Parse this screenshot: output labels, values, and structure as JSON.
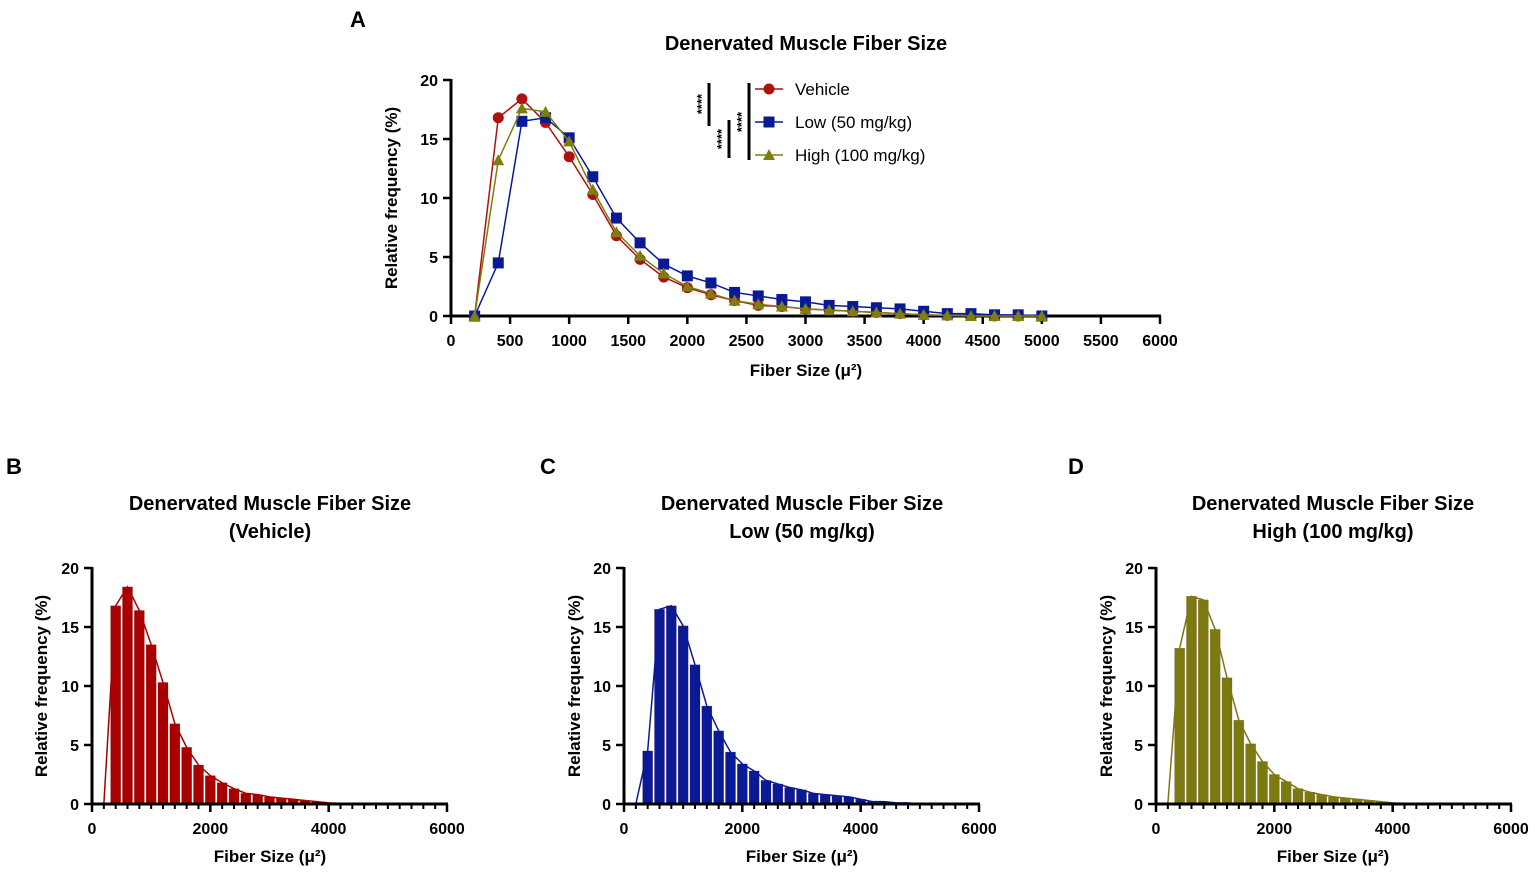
{
  "panel_letters": [
    "A",
    "B",
    "C",
    "D"
  ],
  "colors": {
    "vehicle": "#b01010",
    "low": "#0a1a96",
    "high": "#7d7d10"
  },
  "significance": [
    "****",
    "****",
    "****"
  ],
  "chart_data": [
    {
      "type": "line",
      "panel": "A",
      "title": "Denervated Muscle Fiber Size",
      "xlabel": "Fiber Size (μ²)",
      "ylabel": "Relative frequency (%)",
      "xlim": [
        0,
        6000
      ],
      "ylim": [
        0,
        20
      ],
      "xticks": [
        0,
        500,
        1000,
        1500,
        2000,
        2500,
        3000,
        3500,
        4000,
        4500,
        5000,
        5500,
        6000
      ],
      "yticks": [
        0,
        5,
        10,
        15,
        20
      ],
      "legend_position": "top-right",
      "x": [
        200,
        400,
        600,
        800,
        1000,
        1200,
        1400,
        1600,
        1800,
        2000,
        2200,
        2400,
        2600,
        2800,
        3000,
        3200,
        3400,
        3600,
        3800,
        4000,
        4200,
        4400,
        4600,
        4800,
        5000
      ],
      "series": [
        {
          "name": "Vehicle",
          "marker": "circle",
          "color": "#b01010",
          "values": [
            0,
            16.8,
            18.4,
            16.4,
            13.5,
            10.3,
            6.8,
            4.8,
            3.3,
            2.4,
            1.8,
            1.3,
            0.9,
            0.8,
            0.6,
            0.5,
            0.4,
            0.3,
            0.2,
            0.1,
            0.05,
            0.05,
            0,
            0,
            0
          ]
        },
        {
          "name": "Low (50 mg/kg)",
          "marker": "square",
          "color": "#0a1a96",
          "values": [
            0,
            4.5,
            16.5,
            16.8,
            15.1,
            11.8,
            8.3,
            6.2,
            4.4,
            3.4,
            2.8,
            2.0,
            1.7,
            1.4,
            1.2,
            0.9,
            0.8,
            0.7,
            0.6,
            0.4,
            0.2,
            0.2,
            0.1,
            0.1,
            0
          ]
        },
        {
          "name": "High (100 mg/kg)",
          "marker": "triangle",
          "color": "#7d7d10",
          "values": [
            0,
            13.2,
            17.6,
            17.3,
            14.8,
            10.7,
            7.1,
            5.1,
            3.6,
            2.5,
            1.9,
            1.3,
            1.0,
            0.8,
            0.6,
            0.5,
            0.4,
            0.3,
            0.2,
            0.1,
            0.05,
            0,
            0,
            0,
            0
          ]
        }
      ]
    },
    {
      "type": "bar",
      "panel": "B",
      "title": [
        "Denervated Muscle Fiber Size",
        "(Vehicle)"
      ],
      "xlabel": "Fiber Size (μ²)",
      "ylabel": "Relative frequency (%)",
      "xlim": [
        0,
        6000
      ],
      "ylim": [
        0,
        20
      ],
      "xticks": [
        0,
        2000,
        4000,
        6000
      ],
      "yticks": [
        0,
        5,
        10,
        15,
        20
      ],
      "color": "#a80000",
      "x": [
        200,
        400,
        600,
        800,
        1000,
        1200,
        1400,
        1600,
        1800,
        2000,
        2200,
        2400,
        2600,
        2800,
        3000,
        3200,
        3400,
        3600,
        3800,
        4000,
        4200,
        4400,
        4600,
        4800,
        5000
      ],
      "values": [
        0,
        16.8,
        18.4,
        16.4,
        13.5,
        10.3,
        6.8,
        4.8,
        3.3,
        2.4,
        1.8,
        1.3,
        0.9,
        0.8,
        0.6,
        0.5,
        0.4,
        0.3,
        0.2,
        0.1,
        0.05,
        0.05,
        0,
        0,
        0
      ]
    },
    {
      "type": "bar",
      "panel": "C",
      "title": [
        "Denervated Muscle Fiber Size",
        "Low (50 mg/kg)"
      ],
      "xlabel": "Fiber Size (μ²)",
      "ylabel": "Relative frequency (%)",
      "xlim": [
        0,
        6000
      ],
      "ylim": [
        0,
        20
      ],
      "xticks": [
        0,
        2000,
        4000,
        6000
      ],
      "yticks": [
        0,
        5,
        10,
        15,
        20
      ],
      "color": "#0a1a96",
      "x": [
        200,
        400,
        600,
        800,
        1000,
        1200,
        1400,
        1600,
        1800,
        2000,
        2200,
        2400,
        2600,
        2800,
        3000,
        3200,
        3400,
        3600,
        3800,
        4000,
        4200,
        4400,
        4600,
        4800,
        5000
      ],
      "values": [
        0,
        4.5,
        16.5,
        16.8,
        15.1,
        11.8,
        8.3,
        6.2,
        4.4,
        3.4,
        2.8,
        2.0,
        1.7,
        1.4,
        1.2,
        0.9,
        0.8,
        0.7,
        0.6,
        0.4,
        0.2,
        0.2,
        0.1,
        0.1,
        0
      ]
    },
    {
      "type": "bar",
      "panel": "D",
      "title": [
        "Denervated Muscle Fiber Size",
        "High (100 mg/kg)"
      ],
      "xlabel": "Fiber Size (μ²)",
      "ylabel": "Relative frequency (%)",
      "xlim": [
        0,
        6000
      ],
      "ylim": [
        0,
        20
      ],
      "xticks": [
        0,
        2000,
        4000,
        6000
      ],
      "yticks": [
        0,
        5,
        10,
        15,
        20
      ],
      "color": "#7a7a10",
      "x": [
        200,
        400,
        600,
        800,
        1000,
        1200,
        1400,
        1600,
        1800,
        2000,
        2200,
        2400,
        2600,
        2800,
        3000,
        3200,
        3400,
        3600,
        3800,
        4000,
        4200,
        4400,
        4600,
        4800,
        5000
      ],
      "values": [
        0,
        13.2,
        17.6,
        17.3,
        14.8,
        10.7,
        7.1,
        5.1,
        3.6,
        2.5,
        1.9,
        1.3,
        1.0,
        0.8,
        0.6,
        0.5,
        0.4,
        0.3,
        0.2,
        0.1,
        0.05,
        0,
        0,
        0,
        0
      ]
    }
  ]
}
